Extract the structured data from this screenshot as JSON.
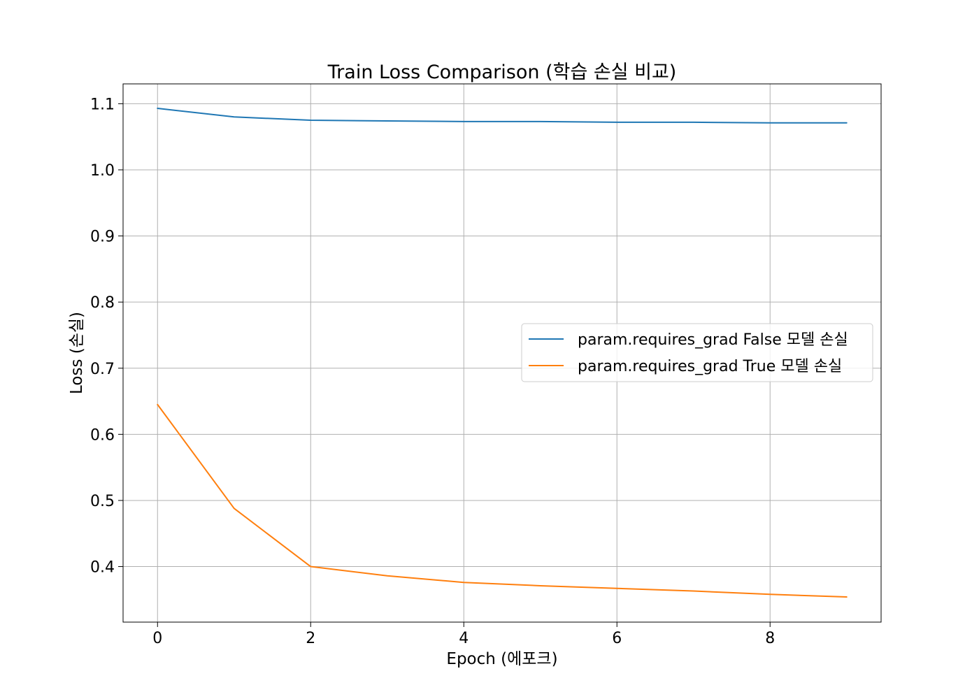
{
  "chart_data": {
    "type": "line",
    "title": "Train Loss Comparison (학습 손실 비교)",
    "xlabel": "Epoch (에포크)",
    "ylabel": "Loss (손실)",
    "xlim": [
      -0.45,
      9.45
    ],
    "ylim": [
      0.316,
      1.13
    ],
    "xticks": [
      0,
      2,
      4,
      6,
      8
    ],
    "xtick_labels": [
      "0",
      "2",
      "4",
      "6",
      "8"
    ],
    "yticks": [
      0.4,
      0.5,
      0.6,
      0.7,
      0.8,
      0.9,
      1.0,
      1.1
    ],
    "ytick_labels": [
      "0.4",
      "0.5",
      "0.6",
      "0.7",
      "0.8",
      "0.9",
      "1.0",
      "1.1"
    ],
    "grid": true,
    "legend_position": "center-right",
    "x": [
      0,
      1,
      2,
      3,
      4,
      5,
      6,
      7,
      8,
      9
    ],
    "series": [
      {
        "name": "param.requires_grad False 모델 손실",
        "color": "#1f77b4",
        "values": [
          1.093,
          1.08,
          1.075,
          1.074,
          1.073,
          1.073,
          1.072,
          1.072,
          1.071,
          1.071
        ]
      },
      {
        "name": "param.requires_grad True 모델 손실",
        "color": "#ff7f0e",
        "values": [
          0.645,
          0.488,
          0.4,
          0.386,
          0.376,
          0.371,
          0.367,
          0.363,
          0.358,
          0.354
        ]
      }
    ]
  }
}
